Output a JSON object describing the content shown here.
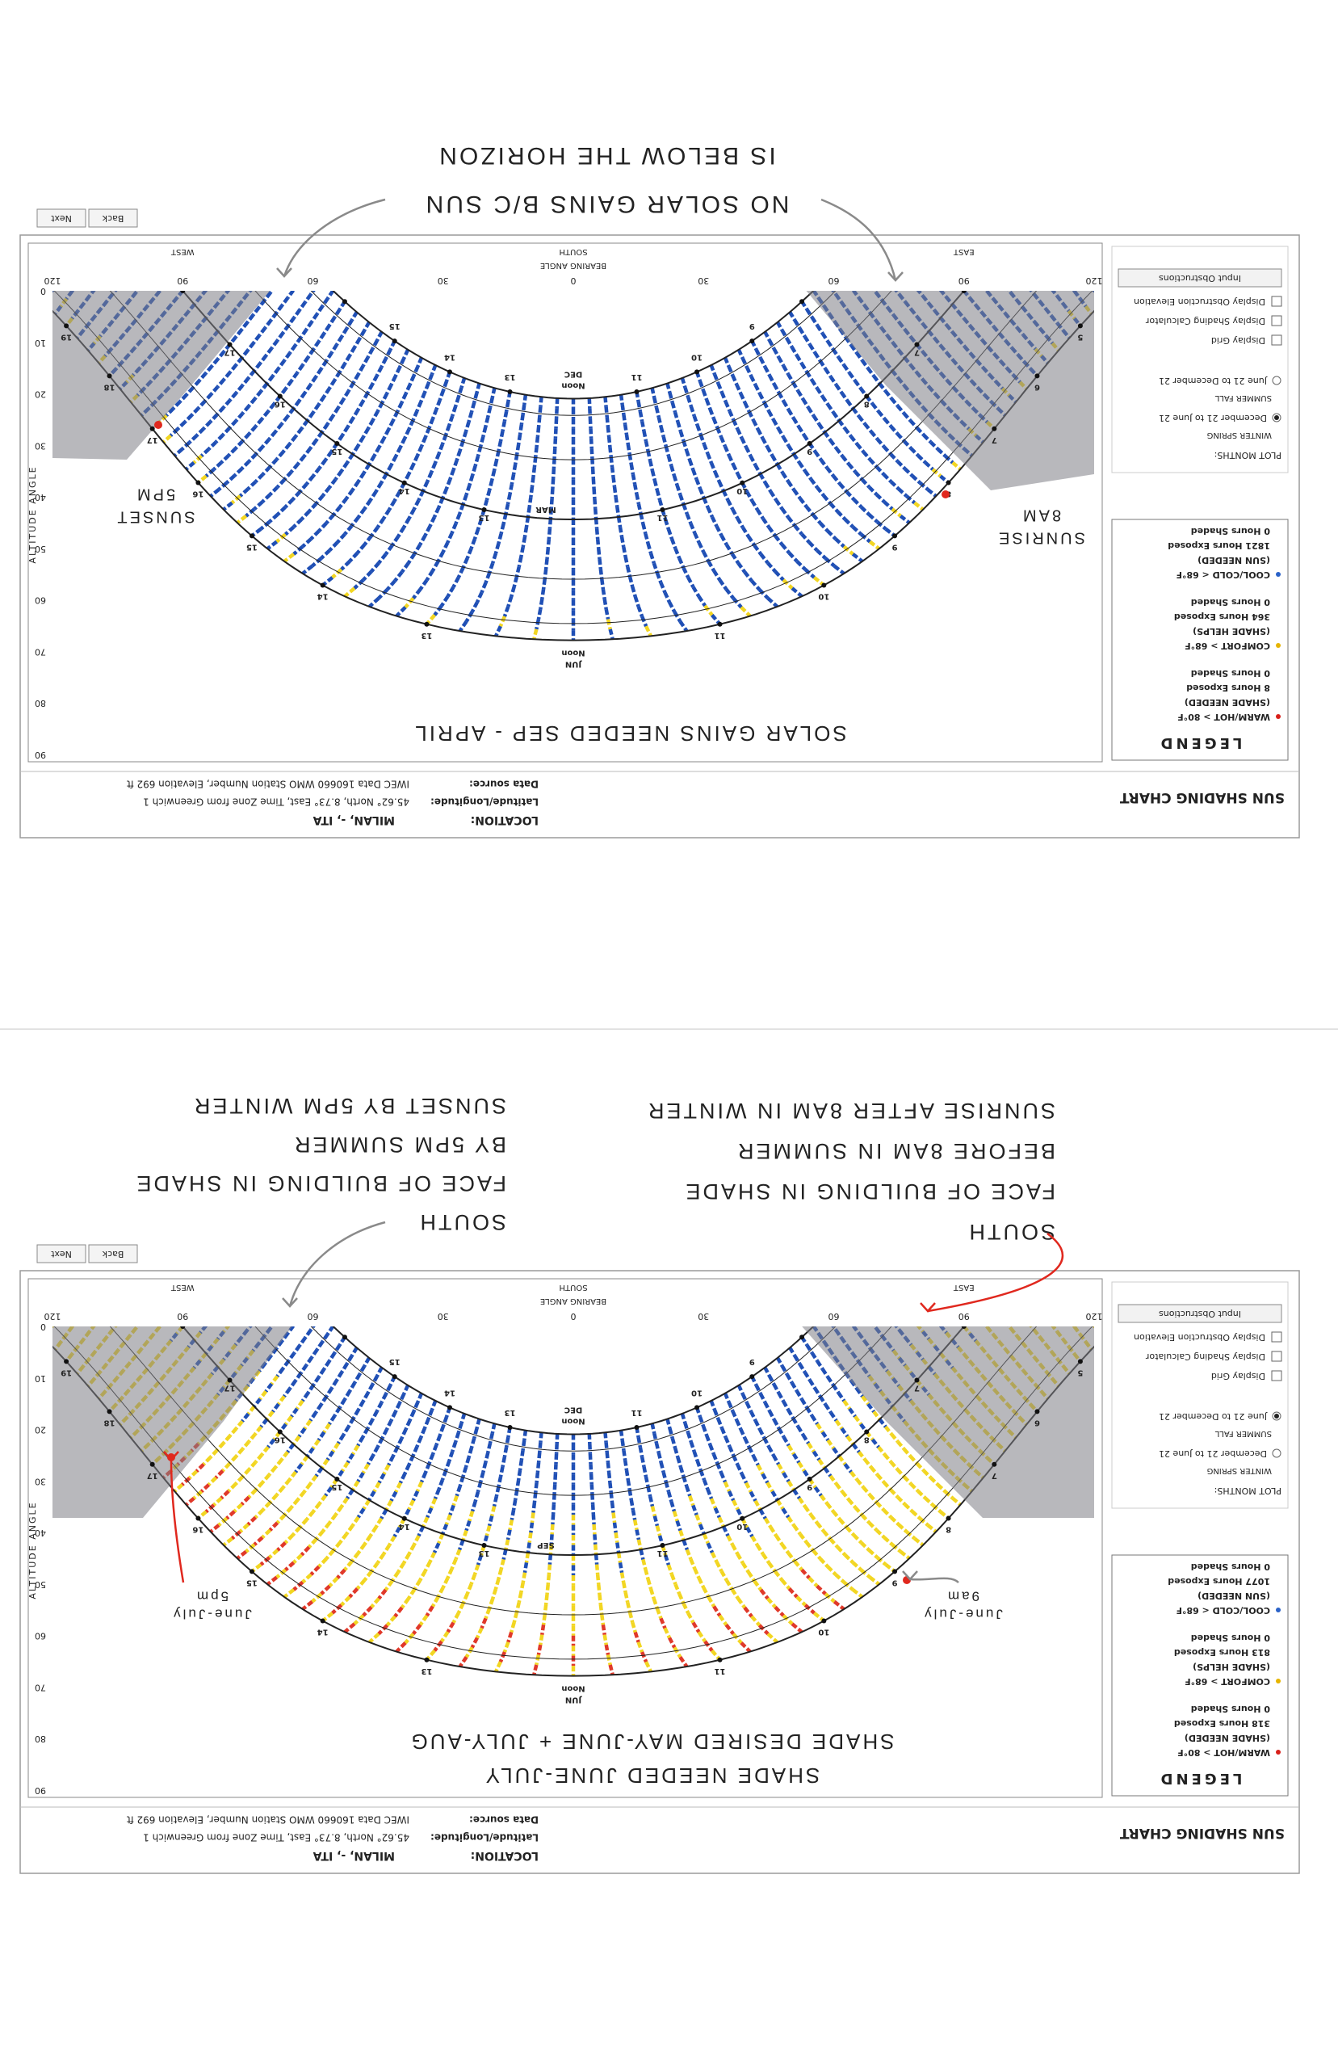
{
  "panels": [
    {
      "header": {
        "title": "SUN SHADING CHART",
        "location_label": "LOCATION:",
        "location": "MILAN, -, ITA",
        "latlon_label": "Latitude/Longitude:",
        "latlon": "45.62° North, 8.73° East, Time Zone from Greenwich 1",
        "source_label": "Data source:",
        "source": "IWEC Data   160660 WMO Station Number, Elevation 692 ft"
      },
      "legend": {
        "title": "LEGEND",
        "items": [
          {
            "label": "WARM/HOT > 80°F",
            "need": "(SHADE NEEDED)",
            "exposed": "8 Hours Exposed",
            "shaded": "0 Hours Shaded"
          },
          {
            "label": "COMFORT > 68°F",
            "need": "(SHADE HELPS)",
            "exposed": "364 Hours Exposed",
            "shaded": "0 Hours Shaded"
          },
          {
            "label": "COOL/COLD < 68°F",
            "need": "(SUN NEEDED)",
            "exposed": "1821 Hours Exposed",
            "shaded": "0 Hours Shaded"
          }
        ]
      },
      "plot_months": {
        "title": "PLOT MONTHS:",
        "groups": [
          {
            "season": "WINTER SPRING",
            "range": "December 21 to June 21"
          },
          {
            "season": "SUMMER FALL",
            "range": "June 21 to December 21"
          }
        ],
        "selected": 0
      },
      "options": [
        "Display Grid",
        "Display Shading Calculator",
        "Display Obstruction Elevation"
      ],
      "button": "Input Obstructions",
      "nav": [
        "Back",
        "Next"
      ],
      "chart": {
        "y_label": "ALTITUDE ANGLE",
        "yticks": [
          0,
          10,
          20,
          30,
          40,
          50,
          60,
          70,
          80,
          90
        ],
        "x_label": "BEARING ANGLE",
        "xticks": [
          {
            "value": -120,
            "label": "120"
          },
          {
            "value": -90,
            "label": "90"
          },
          {
            "value": -60,
            "label": "60"
          },
          {
            "value": -30,
            "label": "30"
          },
          0,
          30,
          60,
          90,
          120
        ],
        "directions": [
          {
            "value": -90,
            "label": "EAST"
          },
          {
            "value": 0,
            "label": "SOUTH"
          },
          {
            "value": 90,
            "label": "WEST"
          }
        ],
        "months": [
          "DEC",
          "MAR",
          "JUN"
        ],
        "noon": "Noon",
        "hours": [
          5,
          6,
          7,
          8,
          9,
          10,
          11,
          13,
          14,
          15,
          16,
          17,
          18,
          19
        ]
      },
      "notes": [
        {
          "lines": [
            "SOLAR GAINS NEEDED SEP - APRIL"
          ],
          "color": "#2a8fd6"
        },
        {
          "lines": [
            "SUNRISE",
            "8AM"
          ],
          "color": "#e0281e"
        },
        {
          "lines": [
            "SUNSET",
            "5PM"
          ],
          "color": "#e0281e"
        },
        {
          "lines": [
            "NO SOLAR GAINS B/C SUN",
            "IS BELOW THE HORIZON"
          ],
          "color": "#707070"
        }
      ]
    },
    {
      "header": {
        "title": "SUN SHADING CHART",
        "location_label": "LOCATION:",
        "location": "MILAN, -, ITA",
        "latlon_label": "Latitude/Longitude:",
        "latlon": "45.62° North, 8.73° East, Time Zone from Greenwich 1",
        "source_label": "Data source:",
        "source": "IWEC Data   160660 WMO Station Number, Elevation 692 ft"
      },
      "legend": {
        "title": "LEGEND",
        "items": [
          {
            "label": "WARM/HOT > 80°F",
            "need": "(SHADE NEEDED)",
            "exposed": "318 Hours Exposed",
            "shaded": "0 Hours Shaded"
          },
          {
            "label": "COMFORT > 68°F",
            "need": "(SHADE HELPS)",
            "exposed": "813 Hours Exposed",
            "shaded": "0 Hours Shaded"
          },
          {
            "label": "COOL/COLD < 68°F",
            "need": "(SUN NEEDED)",
            "exposed": "1077 Hours Exposed",
            "shaded": "0 Hours Shaded"
          }
        ]
      },
      "plot_months": {
        "title": "PLOT MONTHS:",
        "groups": [
          {
            "season": "WINTER SPRING",
            "range": "December 21 to June 21"
          },
          {
            "season": "SUMMER FALL",
            "range": "June 21 to December 21"
          }
        ],
        "selected": 1
      },
      "options": [
        "Display Grid",
        "Display Shading Calculator",
        "Display Obstruction Elevation"
      ],
      "button": "Input Obstructions",
      "nav": [
        "Back",
        "Next"
      ],
      "chart": {
        "y_label": "ALTITUDE ANGLE",
        "yticks": [
          0,
          10,
          20,
          30,
          40,
          50,
          60,
          70,
          80,
          90
        ],
        "x_label": "BEARING ANGLE",
        "xticks": [
          {
            "value": -120,
            "label": "120"
          },
          {
            "value": -90,
            "label": "90"
          },
          {
            "value": -60,
            "label": "60"
          },
          {
            "value": -30,
            "label": "30"
          },
          0,
          30,
          60,
          90,
          120
        ],
        "directions": [
          {
            "value": -90,
            "label": "EAST"
          },
          {
            "value": 0,
            "label": "SOUTH"
          },
          {
            "value": 90,
            "label": "WEST"
          }
        ],
        "months": [
          "DEC",
          "SEP",
          "JUN"
        ],
        "noon": "Noon",
        "hours": [
          5,
          6,
          7,
          8,
          9,
          10,
          11,
          13,
          14,
          15,
          16,
          17,
          18,
          19
        ]
      },
      "notes": [
        {
          "lines": [
            "SHADE NEEDED JUNE-JULY",
            "SHADE DESIRED MAY-JUNE + JULY-AUG"
          ],
          "color": "#e0281e"
        },
        {
          "lines": [
            "June-July",
            "9am"
          ],
          "color": "#e0281e"
        },
        {
          "lines": [
            "June-July",
            "5pm"
          ],
          "color": "#e0281e"
        },
        {
          "lines": [
            "SOUTH",
            "FACE OF BUILDING IN SHADE",
            "BEFORE 8AM IN SUMMER",
            "SUNRISE AFTER 8AM IN WINTER"
          ],
          "color": "#707070"
        },
        {
          "lines": [
            "SOUTH",
            "FACE OF BUILDING IN SHADE",
            "BY 5PM SUMMER",
            "SUNSET BY 5PM WINTER"
          ],
          "color": "#707070"
        }
      ]
    }
  ]
}
